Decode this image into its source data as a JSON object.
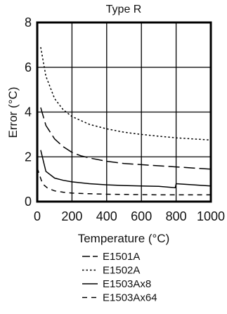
{
  "chart_data": {
    "type": "line",
    "title": "Type R",
    "xlabel": "Temperature (°C)",
    "ylabel": "Error (°C)",
    "xlim": [
      0,
      1000
    ],
    "ylim": [
      0,
      8
    ],
    "xticks": [
      0,
      200,
      400,
      600,
      800,
      1000
    ],
    "yticks": [
      0,
      2,
      4,
      6,
      8
    ],
    "grid": true,
    "legend_position": "bottom-center",
    "series": [
      {
        "name": "E1501A",
        "style": "long-dash",
        "x": [
          20,
          50,
          100,
          150,
          200,
          250,
          300,
          400,
          500,
          600,
          700,
          800,
          900,
          1000
        ],
        "y": [
          4.2,
          3.4,
          2.8,
          2.45,
          2.2,
          2.05,
          1.95,
          1.8,
          1.7,
          1.65,
          1.6,
          1.55,
          1.5,
          1.45
        ]
      },
      {
        "name": "E1502A",
        "style": "dotted",
        "x": [
          20,
          50,
          100,
          150,
          200,
          300,
          400,
          500,
          600,
          700,
          800,
          900,
          1000
        ],
        "y": [
          6.9,
          5.6,
          4.6,
          4.1,
          3.8,
          3.45,
          3.25,
          3.1,
          3.0,
          2.92,
          2.85,
          2.8,
          2.75
        ]
      },
      {
        "name": "E1503Ax8",
        "style": "solid",
        "x": [
          20,
          50,
          100,
          150,
          200,
          300,
          400,
          500,
          600,
          700,
          795,
          800,
          900,
          1000
        ],
        "y": [
          2.3,
          1.35,
          1.05,
          0.95,
          0.88,
          0.8,
          0.75,
          0.72,
          0.7,
          0.68,
          0.62,
          0.8,
          0.75,
          0.7
        ]
      },
      {
        "name": "E1503Ax64",
        "style": "short-dash",
        "x": [
          0,
          30,
          60,
          100,
          150,
          200,
          300,
          400,
          500,
          600,
          700,
          800,
          900,
          1000
        ],
        "y": [
          1.5,
          0.8,
          0.6,
          0.48,
          0.42,
          0.38,
          0.35,
          0.33,
          0.32,
          0.31,
          0.3,
          0.3,
          0.3,
          0.3
        ]
      }
    ]
  }
}
